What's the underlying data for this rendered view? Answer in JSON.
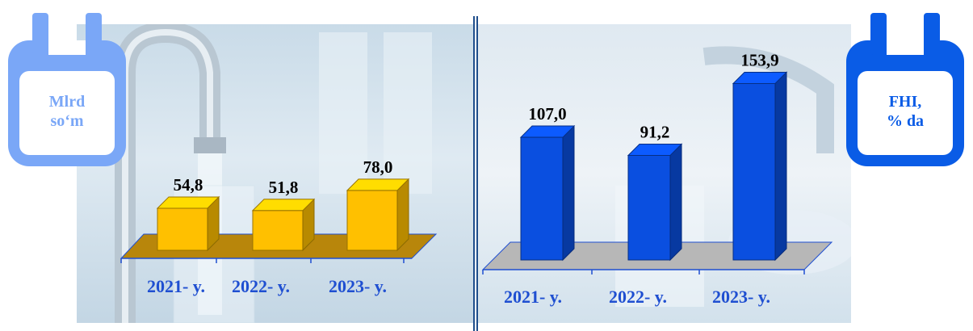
{
  "left_badge": {
    "line1": "Mlrd",
    "line2": "so‘m",
    "color": "#7aa7f7"
  },
  "right_badge": {
    "line1": "FHI,",
    "line2": "% da",
    "color": "#0a5ce6"
  },
  "chart_data": [
    {
      "type": "bar",
      "categories": [
        "2021- y.",
        "2022- y.",
        "2023- y."
      ],
      "values": [
        54.8,
        51.8,
        78.0
      ],
      "labels": [
        "54,8",
        "51,8",
        "78,0"
      ],
      "bar_color": "#ffc000",
      "floor_color": "#b8860b",
      "label_color": "#1f4fd1"
    },
    {
      "type": "bar",
      "categories": [
        "2021- y.",
        "2022- y.",
        "2023- y."
      ],
      "values": [
        107.0,
        91.2,
        153.9
      ],
      "labels": [
        "107,0",
        "91,2",
        "153,9"
      ],
      "bar_color": "#0a4fe0",
      "floor_color": "#b7b7b7",
      "label_color": "#1f4fd1"
    }
  ]
}
